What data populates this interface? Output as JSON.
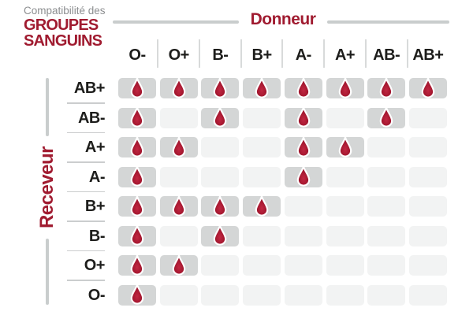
{
  "title": {
    "line1": "Compatibilité des",
    "line2": "GROUPES",
    "line3": "SANGUINS"
  },
  "axes": {
    "donor_label": "Donneur",
    "receiver_label": "Receveur"
  },
  "chart_data": {
    "type": "heatmap",
    "title": "Compatibilité des groupes sanguins",
    "x_axis_label": "Donneur",
    "y_axis_label": "Receveur",
    "columns": [
      "O-",
      "O+",
      "B-",
      "B+",
      "A-",
      "A+",
      "AB-",
      "AB+"
    ],
    "rows": [
      "AB+",
      "AB-",
      "A+",
      "A-",
      "B+",
      "B-",
      "O+",
      "O-"
    ],
    "matrix": [
      [
        1,
        1,
        1,
        1,
        1,
        1,
        1,
        1
      ],
      [
        1,
        0,
        1,
        0,
        1,
        0,
        1,
        0
      ],
      [
        1,
        1,
        0,
        0,
        1,
        1,
        0,
        0
      ],
      [
        1,
        0,
        0,
        0,
        1,
        0,
        0,
        0
      ],
      [
        1,
        1,
        1,
        1,
        0,
        0,
        0,
        0
      ],
      [
        1,
        0,
        1,
        0,
        0,
        0,
        0,
        0
      ],
      [
        1,
        1,
        0,
        0,
        0,
        0,
        0,
        0
      ],
      [
        1,
        0,
        0,
        0,
        0,
        0,
        0,
        0
      ]
    ],
    "compatible": {
      "AB+": [
        "O-",
        "O+",
        "B-",
        "B+",
        "A-",
        "A+",
        "AB-",
        "AB+"
      ],
      "AB-": [
        "O-",
        "B-",
        "A-",
        "AB-"
      ],
      "A+": [
        "O-",
        "O+",
        "A-",
        "A+"
      ],
      "A-": [
        "O-",
        "A-"
      ],
      "B+": [
        "O-",
        "O+",
        "B-",
        "B+"
      ],
      "B-": [
        "O-",
        "B-"
      ],
      "O+": [
        "O-",
        "O+"
      ],
      "O-": [
        "O-"
      ]
    },
    "marker_icon": "blood-drop-icon",
    "marker_meaning": "compatible",
    "legend_position": "none",
    "grid": "rounded-cells"
  },
  "colors": {
    "accent_red": "#A01B30",
    "drop_red_light": "#C22742",
    "drop_red_dark": "#8F0D23",
    "subtitle_gray": "#8C8E90",
    "label_black": "#1D1D1B",
    "cell_filled_gray": "#D4D6D6",
    "cell_empty_gray": "#F2F3F3",
    "axis_line_gray": "#C9CDCD",
    "divider_gray": "#D8DADA",
    "row_divider_gray": "#CBCDCE",
    "background": "#FFFFFF"
  }
}
